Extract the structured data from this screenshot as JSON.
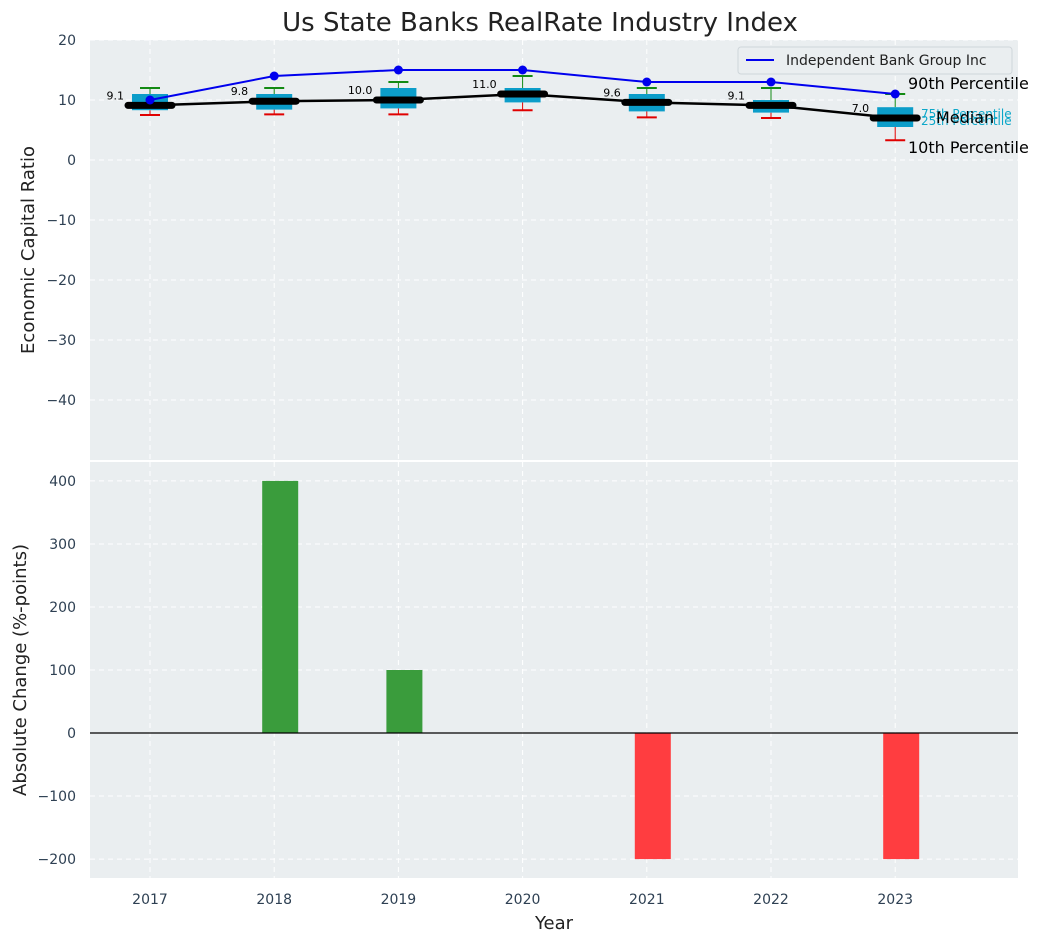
{
  "title": "Us State Banks RealRate Industry Index",
  "colors": {
    "plot_bg": "#EAEEF0",
    "box": "#0C9DC9",
    "median": "#000000",
    "whisker_top": "#138A13",
    "whisker_bottom": "#E00000",
    "company_line": "#0000EE",
    "bar_pos": "#3A9C3C",
    "bar_neg": "#FF3D40",
    "tick_text": "#2E4053",
    "annot_cyan": "#0CA7C9"
  },
  "chart_data": [
    {
      "type": "box-line",
      "ylabel": "Economic Capital Ratio",
      "ylim": [
        -50,
        20
      ],
      "yticks": [
        20,
        10,
        0,
        -10,
        -20,
        -30,
        -40
      ],
      "grid": true,
      "legend": {
        "position": "top-right",
        "entries": [
          "Independent Bank Group Inc"
        ]
      },
      "categories": [
        "2017",
        "2018",
        "2019",
        "2020",
        "2021",
        "2022",
        "2023"
      ],
      "industry": {
        "p10": [
          7.5,
          7.6,
          7.6,
          8.3,
          7.1,
          7.0,
          3.3
        ],
        "p25": [
          8.3,
          8.4,
          8.6,
          9.6,
          8.1,
          7.9,
          5.5
        ],
        "median": [
          9.1,
          9.8,
          10.0,
          11.0,
          9.6,
          9.1,
          7.0
        ],
        "p75": [
          11.0,
          11.0,
          12.0,
          12.0,
          11.0,
          10.0,
          8.8
        ],
        "p90": [
          12.0,
          12.0,
          13.0,
          14.0,
          12.0,
          12.0,
          11.0
        ]
      },
      "median_labels": [
        "9.1",
        "9.8",
        "10.0",
        "11.0",
        "9.6",
        "9.1",
        "7.0"
      ],
      "company": {
        "name": "Independent Bank Group Inc",
        "values": [
          10,
          14,
          15,
          15,
          13,
          13,
          11
        ]
      },
      "annotations": {
        "p90": "90th Percentile",
        "p75": "75th Percentile",
        "median": "Median",
        "p25": "25th Percentile",
        "p10": "10th Percentile"
      }
    },
    {
      "type": "bar",
      "xlabel": "Year",
      "ylabel": "Absolute Change (%-points)",
      "ylim": [
        -230,
        430
      ],
      "yticks": [
        400,
        300,
        200,
        100,
        0,
        -100,
        -200
      ],
      "grid": true,
      "categories": [
        "2017",
        "2018",
        "2019",
        "2020",
        "2021",
        "2022",
        "2023"
      ],
      "values": [
        0,
        400,
        100,
        0,
        -200,
        0,
        -200
      ]
    }
  ]
}
